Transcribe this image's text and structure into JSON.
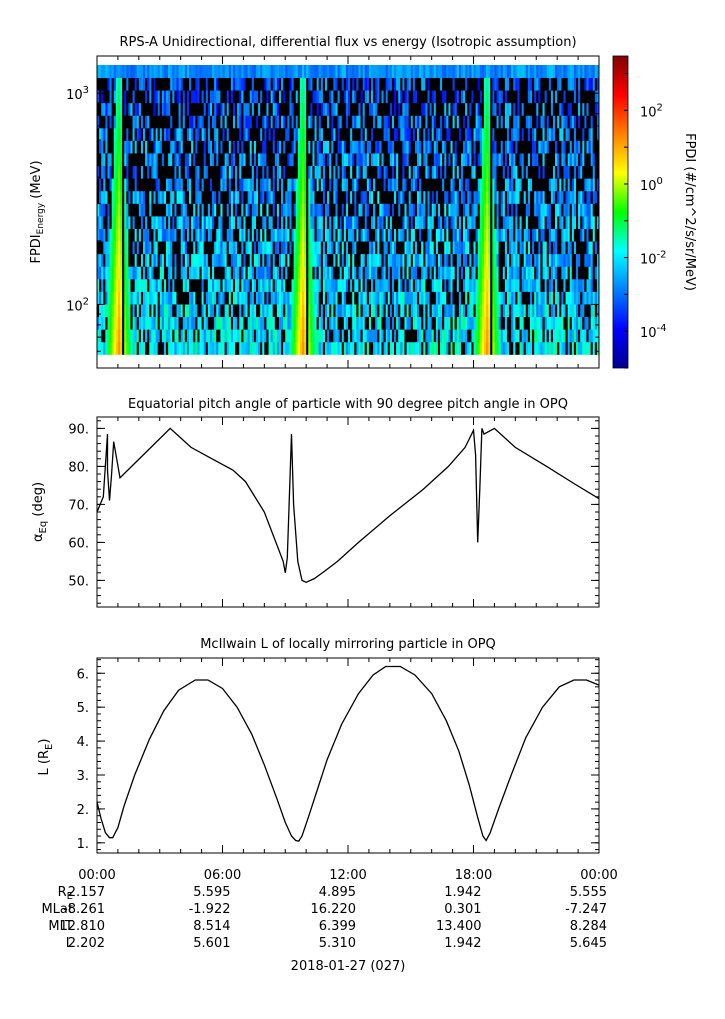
{
  "chart_data": [
    {
      "type": "heatmap",
      "title": "RPS-A Unidirectional, differential flux vs energy (Isotropic assumption)",
      "ylabel_main": "FPDI",
      "ylabel_sub": "Energy",
      "ylabel_unit": " (MeV)",
      "y_scale": "log",
      "ylim": [
        50,
        1500
      ],
      "y_ticks": [
        {
          "base": "10",
          "exp": "2",
          "value": 100
        },
        {
          "base": "10",
          "exp": "3",
          "value": 1000
        }
      ],
      "colorbar": {
        "label": "FPDI (#/cm^2/s/sr/MeV)",
        "scale": "log",
        "range": [
          1e-05,
          3000
        ],
        "ticks": [
          {
            "base": "10",
            "exp": "2",
            "value": 100
          },
          {
            "base": "10",
            "exp": "0",
            "value": 1
          },
          {
            "base": "10",
            "exp": "-2",
            "value": 0.01
          },
          {
            "base": "10",
            "exp": "-4",
            "value": 0.0001
          }
        ],
        "colormap": "jet"
      },
      "x_range_hours": [
        0,
        24
      ],
      "high_flux_bands_hours": [
        1.0,
        9.8,
        18.6
      ]
    },
    {
      "type": "line",
      "title": "Equatorial pitch angle of particle with 90 degree pitch angle in OPQ",
      "ylabel_main": "α",
      "ylabel_sub": "Eq",
      "ylabel_unit": " (deg)",
      "ylim": [
        43,
        93
      ],
      "y_ticks": [
        "50.",
        "60.",
        "70.",
        "80.",
        "90."
      ],
      "x_hours": [
        0,
        0.3,
        0.5,
        0.5,
        0.6,
        0.7,
        0.8,
        0.8,
        1.1,
        3.5,
        4.5,
        5.5,
        6.5,
        7.1,
        8.0,
        8.9,
        9.0,
        9.1,
        9.3,
        9.4,
        9.6,
        9.8,
        10.0,
        10.4,
        10.9,
        11.5,
        12.5,
        14.0,
        15.6,
        16.8,
        17.6,
        18.0,
        18.1,
        18.2,
        18.3,
        18.4,
        18.5,
        18.5,
        19.0,
        20.0,
        21.5,
        22.8,
        24.0
      ],
      "y_deg": [
        68.0,
        72.0,
        88.5,
        79.0,
        71.0,
        78.0,
        86.5,
        86.5,
        77.0,
        90.0,
        85.0,
        82.0,
        79.0,
        76.0,
        68.0,
        55.0,
        52.0,
        56.0,
        88.5,
        70.0,
        55.0,
        50.0,
        49.5,
        50.5,
        52.5,
        55.0,
        60.0,
        67.0,
        74.0,
        80.0,
        85.0,
        89.5,
        83.0,
        60.0,
        74.0,
        90.0,
        88.5,
        88.5,
        90.0,
        85.0,
        80.0,
        75.5,
        71.5
      ]
    },
    {
      "type": "line",
      "title": "McIlwain L of locally mirroring particle in OPQ",
      "ylabel_main": "L (R",
      "ylabel_sub": "E",
      "ylabel_unit": ")",
      "ylim": [
        0.7,
        6.45
      ],
      "y_ticks": [
        "1.",
        "2.",
        "3.",
        "4.",
        "5.",
        "6."
      ],
      "x_hours": [
        0,
        0.2,
        0.4,
        0.6,
        0.75,
        1.0,
        1.3,
        1.8,
        2.5,
        3.2,
        3.9,
        4.7,
        5.3,
        6.0,
        6.7,
        7.4,
        8.0,
        8.6,
        9.0,
        9.3,
        9.5,
        9.65,
        9.8,
        10.1,
        10.5,
        11.0,
        11.7,
        12.5,
        13.2,
        13.8,
        14.5,
        15.2,
        16.0,
        16.7,
        17.3,
        17.8,
        18.2,
        18.45,
        18.6,
        18.8,
        19.2,
        19.8,
        20.5,
        21.3,
        22.1,
        22.8,
        23.4,
        24.0
      ],
      "y_L": [
        2.2,
        1.7,
        1.3,
        1.15,
        1.15,
        1.45,
        2.1,
        3.0,
        4.05,
        4.9,
        5.5,
        5.8,
        5.8,
        5.55,
        5.0,
        4.2,
        3.3,
        2.3,
        1.6,
        1.2,
        1.07,
        1.05,
        1.2,
        1.75,
        2.5,
        3.45,
        4.5,
        5.4,
        5.95,
        6.2,
        6.2,
        5.95,
        5.4,
        4.6,
        3.7,
        2.7,
        1.75,
        1.2,
        1.07,
        1.3,
        2.0,
        3.0,
        4.1,
        5.0,
        5.6,
        5.8,
        5.8,
        5.65
      ]
    }
  ],
  "time_axis": {
    "tick_labels": [
      "00:00",
      "06:00",
      "12:00",
      "18:00",
      "00:00"
    ],
    "date_label": "2018-01-27 (027)"
  },
  "ephemeris": {
    "rows": [
      {
        "label": "R",
        "label_sub": "E",
        "values": [
          "2.157",
          "5.595",
          "4.895",
          "1.942",
          "5.555"
        ]
      },
      {
        "label": "MLat",
        "label_sub": "",
        "values": [
          "-8.261",
          "-1.922",
          "16.220",
          "0.301",
          "-7.247"
        ]
      },
      {
        "label": "MLT",
        "label_sub": "",
        "values": [
          "12.810",
          "8.514",
          "6.399",
          "13.400",
          "8.284"
        ]
      },
      {
        "label": "L",
        "label_sub": "",
        "values": [
          "2.202",
          "5.601",
          "5.310",
          "1.942",
          "5.645"
        ]
      }
    ]
  },
  "colors": {
    "line": "#000000",
    "frame": "#000000",
    "background": "#ffffff"
  }
}
